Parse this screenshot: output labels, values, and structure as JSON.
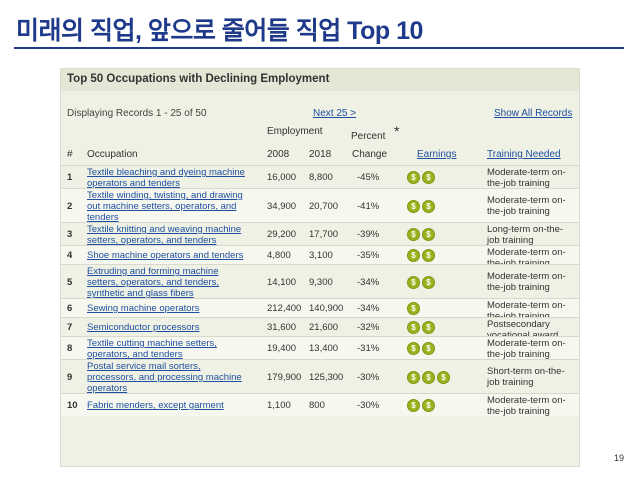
{
  "slide": {
    "title": "미래의 직업, 앞으로 줄어들 직업 Top 10",
    "page_number": "19"
  },
  "table": {
    "title": "Top 50 Occupations with Declining Employment",
    "records_text": "Displaying Records 1 - 25 of 50",
    "next_link": "Next 25 >",
    "show_all_link": "Show All Records",
    "headers": {
      "rank": "#",
      "occupation": "Occupation",
      "employment": "Employment",
      "year1": "2008",
      "year2": "2018",
      "percent_line1": "Percent",
      "percent_line2": "Change",
      "asterisk": "*",
      "earnings": "Earnings",
      "training": "Training Needed"
    },
    "coin_symbol": "$",
    "rows": [
      {
        "rank": "1",
        "occupation_lines": [
          "Textile bleaching and dyeing machine",
          "operators and tenders"
        ],
        "emp2008": "16,000",
        "emp2018": "8,800",
        "change": "-45%",
        "earnings_level": 2,
        "training_lines": [
          "Moderate-term on-",
          "the-job training"
        ]
      },
      {
        "rank": "2",
        "occupation_lines": [
          "Textile winding, twisting, and drawing",
          "out machine setters, operators, and",
          "tenders"
        ],
        "emp2008": "34,900",
        "emp2018": "20,700",
        "change": "-41%",
        "earnings_level": 2,
        "training_lines": [
          "Moderate-term on-",
          "the-job training"
        ]
      },
      {
        "rank": "3",
        "occupation_lines": [
          "Textile knitting and weaving machine",
          "setters, operators, and tenders"
        ],
        "emp2008": "29,200",
        "emp2018": "17,700",
        "change": "-39%",
        "earnings_level": 2,
        "training_lines": [
          "Long-term on-the-",
          "job training"
        ]
      },
      {
        "rank": "4",
        "occupation_lines": [
          "Shoe machine operators and tenders"
        ],
        "emp2008": "4,800",
        "emp2018": "3,100",
        "change": "-35%",
        "earnings_level": 2,
        "training_lines": [
          "Moderate-term on-",
          "the-job training"
        ]
      },
      {
        "rank": "5",
        "occupation_lines": [
          "Extruding and forming machine",
          "setters, operators, and tenders,",
          "synthetic and glass fibers"
        ],
        "emp2008": "14,100",
        "emp2018": "9,300",
        "change": "-34%",
        "earnings_level": 2,
        "training_lines": [
          "Moderate-term on-",
          "the-job training"
        ]
      },
      {
        "rank": "6",
        "occupation_lines": [
          "Sewing machine operators"
        ],
        "emp2008": "212,400",
        "emp2018": "140,900",
        "change": "-34%",
        "earnings_level": 1,
        "training_lines": [
          "Moderate-term on-",
          "the-job training"
        ]
      },
      {
        "rank": "7",
        "occupation_lines": [
          "Semiconductor processors"
        ],
        "emp2008": "31,600",
        "emp2018": "21,600",
        "change": "-32%",
        "earnings_level": 2,
        "training_lines": [
          "Postsecondary",
          "vocational award"
        ]
      },
      {
        "rank": "8",
        "occupation_lines": [
          "Textile cutting machine setters,",
          "operators, and tenders"
        ],
        "emp2008": "19,400",
        "emp2018": "13,400",
        "change": "-31%",
        "earnings_level": 2,
        "training_lines": [
          "Moderate-term on-",
          "the-job training"
        ]
      },
      {
        "rank": "9",
        "occupation_lines": [
          "Postal service mail sorters,",
          "processors, and processing machine",
          "operators"
        ],
        "emp2008": "179,900",
        "emp2018": "125,300",
        "change": "-30%",
        "earnings_level": 3,
        "training_lines": [
          "Short-term on-the-",
          "job training"
        ]
      },
      {
        "rank": "10",
        "occupation_lines": [
          "Fabric menders, except garment"
        ],
        "emp2008": "1,100",
        "emp2018": "800",
        "change": "-30%",
        "earnings_level": 2,
        "training_lines": [
          "Moderate-term on-",
          "the-job training"
        ]
      }
    ]
  }
}
